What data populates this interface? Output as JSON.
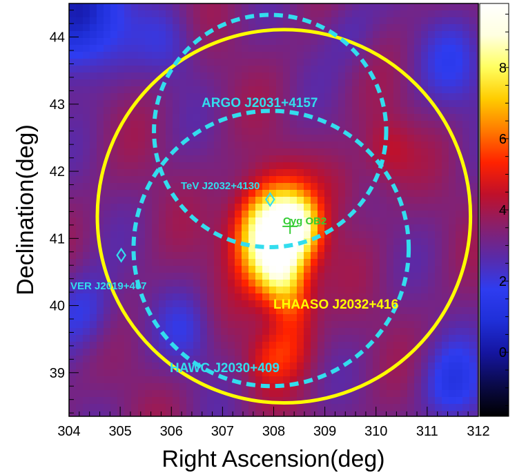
{
  "chart_data": {
    "type": "heatmap",
    "title": "",
    "xlabel": "Right Ascension(deg)",
    "ylabel": "Declination(deg)",
    "xlim": [
      304,
      312
    ],
    "ylim": [
      38.35,
      44.5
    ],
    "x_reversed": false,
    "x_ticks": [
      304,
      305,
      306,
      307,
      308,
      309,
      310,
      311,
      312
    ],
    "y_ticks": [
      39,
      40,
      41,
      42,
      43,
      44
    ],
    "colorbar": {
      "range": [
        -1.8,
        9.8
      ],
      "ticks": [
        0,
        2,
        4,
        6,
        8
      ],
      "colormap": [
        "#000000",
        "#0a0a4a",
        "#1515a0",
        "#1f2fd8",
        "#2e3cf0",
        "#5a2aa8",
        "#8a1f6a",
        "#c0102a",
        "#ff2200",
        "#ff7a00",
        "#ffcc00",
        "#ffff60",
        "#ffffe0",
        "#ffffff"
      ]
    },
    "background_level": 3.3,
    "blobs": [
      {
        "ra": 308.0,
        "dec": 41.05,
        "amp": 7.8,
        "sigma": 0.5
      },
      {
        "ra": 308.5,
        "dec": 41.2,
        "amp": 2.5,
        "sigma": 0.3
      },
      {
        "ra": 308.15,
        "dec": 40.4,
        "amp": 2.3,
        "sigma": 0.32
      },
      {
        "ra": 308.4,
        "dec": 40.0,
        "amp": 1.5,
        "sigma": 0.3
      },
      {
        "ra": 308.3,
        "dec": 39.4,
        "amp": 1.6,
        "sigma": 0.35
      },
      {
        "ra": 307.85,
        "dec": 39.15,
        "amp": 1.1,
        "sigma": 0.3
      },
      {
        "ra": 310.2,
        "dec": 42.3,
        "amp": 1.3,
        "sigma": 0.35
      },
      {
        "ra": 309.4,
        "dec": 41.8,
        "amp": 0.7,
        "sigma": 0.35
      },
      {
        "ra": 304.2,
        "dec": 44.3,
        "amp": -3.3,
        "sigma": 0.6
      },
      {
        "ra": 304.3,
        "dec": 39.9,
        "amp": -1.5,
        "sigma": 0.45
      },
      {
        "ra": 306.3,
        "dec": 39.6,
        "amp": -1.0,
        "sigma": 0.4
      },
      {
        "ra": 311.5,
        "dec": 38.8,
        "amp": -1.8,
        "sigma": 0.45
      },
      {
        "ra": 311.6,
        "dec": 43.6,
        "amp": -1.2,
        "sigma": 0.5
      },
      {
        "ra": 306.0,
        "dec": 43.9,
        "amp": -0.9,
        "sigma": 0.4
      },
      {
        "ra": 309.5,
        "dec": 44.1,
        "amp": -0.8,
        "sigma": 0.4
      }
    ],
    "circles": [
      {
        "label": "LHAASO J2032+416",
        "ra": 308.2,
        "dec": 41.33,
        "radius_deg": 2.78,
        "color": "#ffff00",
        "style": "solid"
      },
      {
        "label": "ARGO J2031+4157",
        "ra": 307.93,
        "dec": 42.6,
        "radius_deg": 1.73,
        "color": "#33ddee",
        "style": "dashed"
      },
      {
        "label": "HAWC J2030+409",
        "ra": 307.95,
        "dec": 40.85,
        "radius_deg": 2.05,
        "color": "#33ddee",
        "style": "dashed"
      }
    ],
    "markers": [
      {
        "label": "TeV J2032+4130",
        "ra": 307.93,
        "dec": 41.58,
        "symbol": "diamond",
        "color": "#33ddee"
      },
      {
        "label": "VER J2019+407",
        "ra": 305.02,
        "dec": 40.75,
        "symbol": "diamond",
        "color": "#33ddee"
      },
      {
        "label": "Cyg OB2",
        "ra": 308.32,
        "dec": 41.18,
        "symbol": "plus",
        "color": "#33cc33"
      }
    ],
    "labels": {
      "lhaaso": "LHAASO J2032+416",
      "argo": "ARGO J2031+4157",
      "hawc": "HAWC J2030+409",
      "tev": "TeV J2032+4130",
      "ver": "VER J2019+407",
      "cyg": "Cyg OB2"
    }
  }
}
